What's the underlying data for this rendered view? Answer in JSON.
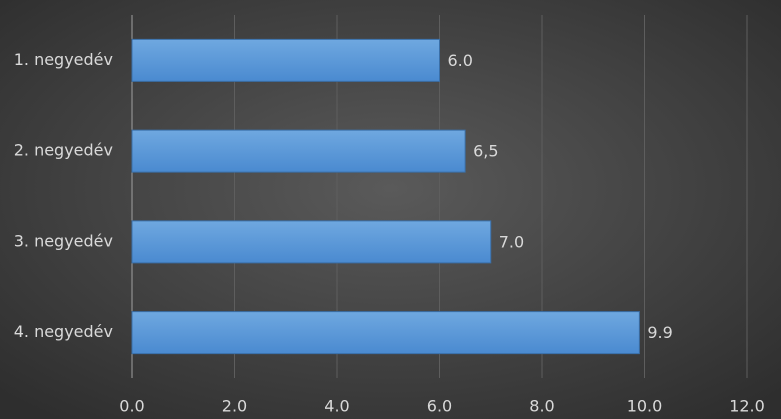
{
  "chart_data": {
    "type": "bar",
    "orientation": "horizontal",
    "categories": [
      "1. negyedév",
      "2. negyedév",
      "3. negyedév",
      "4. negyedév"
    ],
    "values": [
      6.0,
      6.5,
      7.0,
      9.9
    ],
    "value_labels": [
      "6.0",
      "6,5",
      "7.0",
      "9.9"
    ],
    "color": "#5b9bd5",
    "xlim": [
      0,
      12
    ],
    "xticks": [
      {
        "value": 0,
        "label": "0.0"
      },
      {
        "value": 2,
        "label": "2.0"
      },
      {
        "value": 4,
        "label": "4.0"
      },
      {
        "value": 6,
        "label": "6.0"
      },
      {
        "value": 8,
        "label": "8.0"
      },
      {
        "value": 10,
        "label": "10.0"
      },
      {
        "value": 12,
        "label": "12.0"
      }
    ],
    "grid": true
  }
}
